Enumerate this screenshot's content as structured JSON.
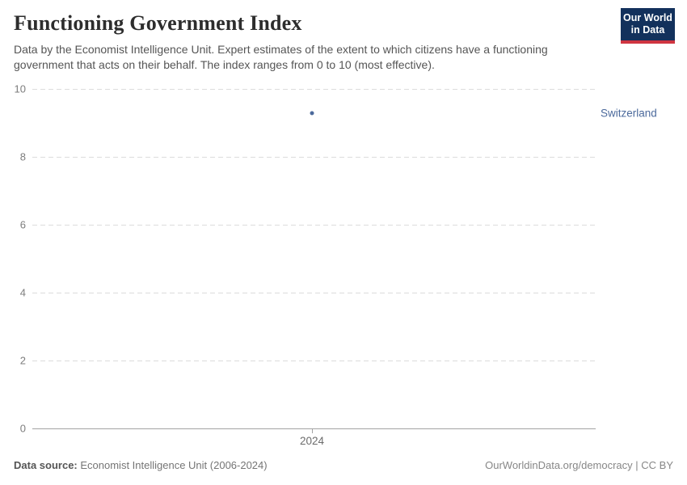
{
  "header": {
    "title": "Functioning Government Index",
    "subtitle": "Data by the Economist Intelligence Unit. Expert estimates of the extent to which citizens have a functioning government that acts on their behalf. The index ranges from 0 to 10 (most effective).",
    "logo_line1": "Our World",
    "logo_line2": "in Data"
  },
  "chart_data": {
    "type": "scatter",
    "title": "Functioning Government Index",
    "series": [
      {
        "name": "Switzerland",
        "x": [
          2024
        ],
        "values": [
          9.29
        ]
      }
    ],
    "categories": [
      2024
    ],
    "xticks": [
      "2024"
    ],
    "yticks": [
      0,
      2,
      4,
      6,
      8,
      10
    ],
    "ylim": [
      0,
      10
    ],
    "xlabel": "",
    "ylabel": "",
    "grid": "horizontal-dashed",
    "legend_position": "right-of-point-entity-label"
  },
  "colors": {
    "series": "#4c6a9c",
    "logo_bg": "#13315c",
    "logo_stripe": "#cf3541",
    "gridline": "#dcdcdc",
    "axis": "#a3a3a3"
  },
  "footer": {
    "source_label": "Data source:",
    "source_value": " Economist Intelligence Unit (2006-2024)",
    "credit": "OurWorldinData.org/democracy | CC BY"
  }
}
